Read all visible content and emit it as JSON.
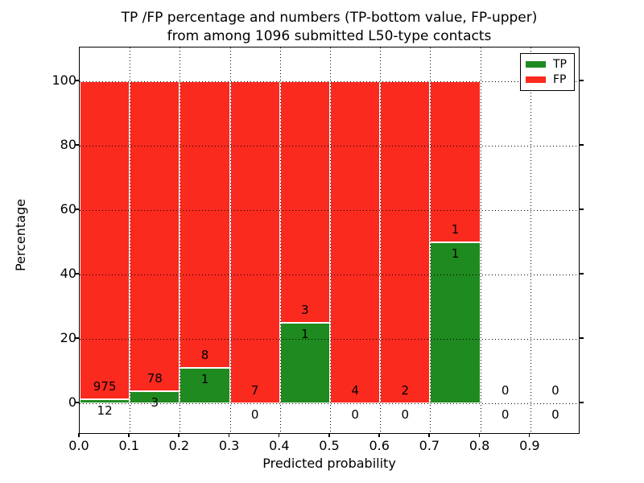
{
  "chart_data": {
    "type": "bar",
    "stacked": true,
    "title_line1": "TP /FP percentage and numbers (TP-bottom value, FP-upper)",
    "title_line2": "from among 1096 submitted L50-type contacts",
    "xlabel": "Predicted probability",
    "ylabel": "Percentage",
    "total_contacts": 1096,
    "x_range": [
      0.0,
      1.0
    ],
    "y_display_range": [
      -10.5,
      110.5
    ],
    "ylim": [
      0,
      100
    ],
    "xticks": [
      "0.0",
      "0.1",
      "0.2",
      "0.3",
      "0.4",
      "0.5",
      "0.6",
      "0.7",
      "0.8",
      "0.9"
    ],
    "yticks": [
      0,
      20,
      40,
      60,
      80,
      100
    ],
    "grid": "dotted-black",
    "legend": {
      "position": "upper-right",
      "entries": [
        {
          "label": "TP",
          "color": "#1f8a1f"
        },
        {
          "label": "FP",
          "color": "#fa2a1f"
        }
      ]
    },
    "bin_width": 0.1,
    "bins": [
      {
        "range": [
          0.0,
          0.1
        ],
        "tp": 12,
        "fp": 975
      },
      {
        "range": [
          0.1,
          0.2
        ],
        "tp": 3,
        "fp": 78
      },
      {
        "range": [
          0.2,
          0.3
        ],
        "tp": 1,
        "fp": 8
      },
      {
        "range": [
          0.3,
          0.4
        ],
        "tp": 0,
        "fp": 7
      },
      {
        "range": [
          0.4,
          0.5
        ],
        "tp": 1,
        "fp": 3
      },
      {
        "range": [
          0.5,
          0.6
        ],
        "tp": 0,
        "fp": 4
      },
      {
        "range": [
          0.6,
          0.7
        ],
        "tp": 0,
        "fp": 2
      },
      {
        "range": [
          0.7,
          0.8
        ],
        "tp": 1,
        "fp": 1
      },
      {
        "range": [
          0.8,
          0.9
        ],
        "tp": 0,
        "fp": 0
      },
      {
        "range": [
          0.9,
          1.0
        ],
        "tp": 0,
        "fp": 0
      }
    ],
    "colors": {
      "tp": "#1f8a1f",
      "fp": "#fa2a1f",
      "grid": "#000000",
      "frame": "#000000",
      "background": "#ffffff"
    }
  }
}
